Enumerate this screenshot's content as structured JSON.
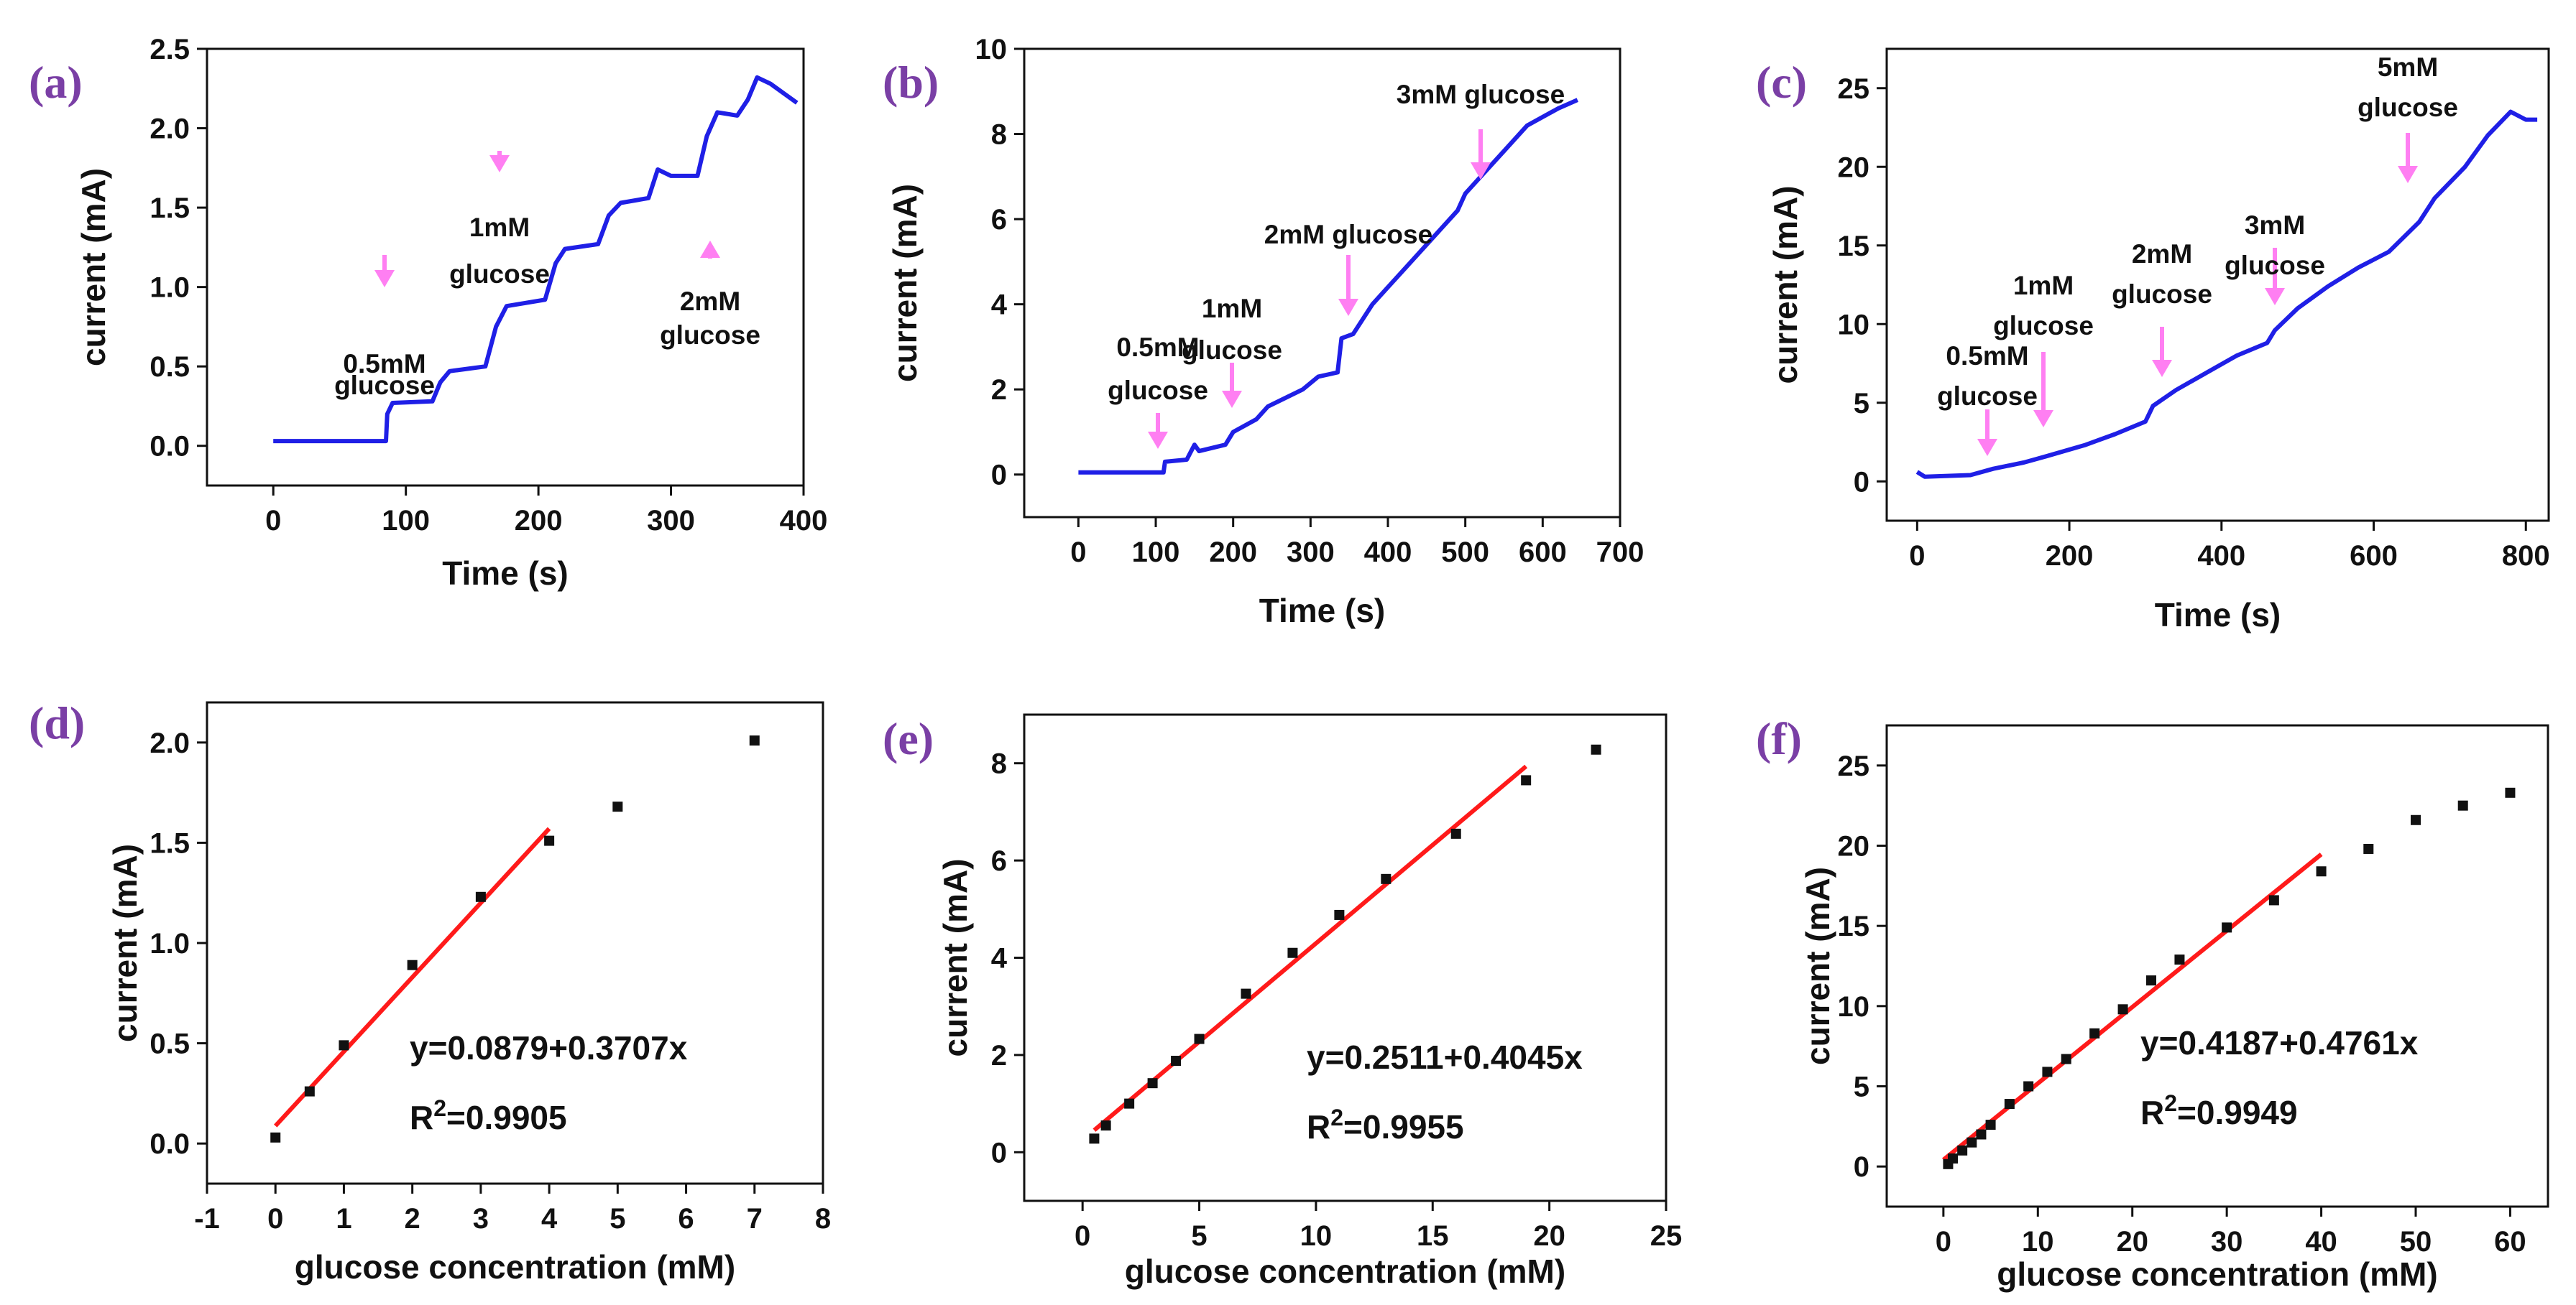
{
  "chart_data": [
    {
      "id": "a",
      "type": "line",
      "panel_label": "(a)",
      "xlabel": "Time (s)",
      "ylabel": "current (mA)",
      "xlim": [
        -50,
        400
      ],
      "ylim": [
        -0.25,
        2.5
      ],
      "xticks": [
        0,
        100,
        200,
        300,
        400
      ],
      "yticks": [
        0.0,
        0.5,
        1.0,
        1.5,
        2.0,
        2.5
      ],
      "ytick_labels": [
        "0.0",
        "0.5",
        "1.0",
        "1.5",
        "2.0",
        "2.5"
      ],
      "xtick_labels": [
        "0",
        "100",
        "200",
        "300",
        "400"
      ],
      "series": [
        {
          "name": "current",
          "color": "#1f1fe6",
          "x": [
            0,
            85,
            86,
            90,
            120,
            126,
            133,
            160,
            168,
            176,
            205,
            213,
            220,
            245,
            253,
            262,
            283,
            290,
            300,
            320,
            327,
            335,
            350,
            358,
            365,
            375,
            395
          ],
          "y": [
            0.03,
            0.03,
            0.2,
            0.27,
            0.28,
            0.4,
            0.47,
            0.5,
            0.75,
            0.88,
            0.92,
            1.15,
            1.24,
            1.27,
            1.45,
            1.53,
            1.56,
            1.74,
            1.7,
            1.7,
            1.95,
            2.1,
            2.08,
            2.18,
            2.32,
            2.28,
            2.16
          ]
        }
      ],
      "annotations": [
        {
          "lines": [
            "0.5mM",
            "glucose"
          ],
          "arrow_x": 85,
          "direction": "down"
        },
        {
          "lines": [
            "1mM",
            "glucose"
          ],
          "arrow_x": 168,
          "direction": "down"
        },
        {
          "lines": [
            "2mM",
            "glucose"
          ],
          "arrow_x": 327,
          "direction": "up"
        }
      ]
    },
    {
      "id": "b",
      "type": "line",
      "panel_label": "(b)",
      "xlabel": "Time (s)",
      "ylabel": "current (mA)",
      "xlim": [
        -70,
        700
      ],
      "ylim": [
        -1,
        10
      ],
      "xticks": [
        0,
        100,
        200,
        300,
        400,
        500,
        600,
        700
      ],
      "yticks": [
        0,
        2,
        4,
        6,
        8,
        10
      ],
      "ytick_labels": [
        "0",
        "2",
        "4",
        "6",
        "8",
        "10"
      ],
      "xtick_labels": [
        "0",
        "100",
        "200",
        "300",
        "400",
        "500",
        "600",
        "700"
      ],
      "series": [
        {
          "name": "current",
          "color": "#1f1fe6",
          "x": [
            0,
            110,
            112,
            140,
            150,
            156,
            190,
            200,
            230,
            245,
            290,
            310,
            335,
            340,
            355,
            380,
            400,
            430,
            450,
            470,
            490,
            500,
            520,
            550,
            580,
            620,
            645
          ],
          "y": [
            0.05,
            0.05,
            0.3,
            0.35,
            0.7,
            0.55,
            0.7,
            1.0,
            1.3,
            1.6,
            2.0,
            2.3,
            2.4,
            3.2,
            3.3,
            4.0,
            4.4,
            5.0,
            5.4,
            5.8,
            6.2,
            6.6,
            7.0,
            7.6,
            8.2,
            8.6,
            8.8
          ]
        }
      ],
      "annotations": [
        {
          "lines": [
            "0.5mM",
            "glucose"
          ],
          "arrow_x": 110,
          "direction": "down"
        },
        {
          "lines": [
            "1mM",
            "glucose"
          ],
          "arrow_x": 195,
          "direction": "down"
        },
        {
          "lines": [
            "2mM glucose"
          ],
          "arrow_x": 335,
          "direction": "down"
        },
        {
          "lines": [
            "3mM glucose"
          ],
          "arrow_x": 490,
          "direction": "down"
        }
      ]
    },
    {
      "id": "c",
      "type": "line",
      "panel_label": "(c)",
      "xlabel": "Time (s)",
      "ylabel": "current (mA)",
      "xlim": [
        -40,
        830
      ],
      "ylim": [
        -2.5,
        27.5
      ],
      "xticks": [
        0,
        200,
        400,
        600,
        800
      ],
      "yticks": [
        0,
        5,
        10,
        15,
        20,
        25
      ],
      "ytick_labels": [
        "0",
        "5",
        "10",
        "15",
        "20",
        "25"
      ],
      "xtick_labels": [
        "0",
        "200",
        "400",
        "600",
        "800"
      ],
      "series": [
        {
          "name": "current",
          "color": "#1f1fe6",
          "x": [
            0,
            10,
            70,
            100,
            140,
            170,
            220,
            260,
            300,
            310,
            340,
            380,
            420,
            460,
            470,
            500,
            540,
            580,
            620,
            660,
            680,
            720,
            750,
            780,
            800,
            815
          ],
          "y": [
            0.6,
            0.3,
            0.4,
            0.8,
            1.2,
            1.6,
            2.3,
            3.0,
            3.8,
            4.8,
            5.8,
            6.9,
            8.0,
            8.8,
            9.6,
            11.0,
            12.4,
            13.6,
            14.6,
            16.5,
            18.0,
            20.0,
            22.0,
            23.5,
            23.0,
            23.0
          ]
        }
      ],
      "annotations": [
        {
          "lines": [
            "0.5mM",
            "glucose"
          ],
          "arrow_x": 65,
          "direction": "down"
        },
        {
          "lines": [
            "1mM",
            "glucose"
          ],
          "arrow_x": 140,
          "direction": "down"
        },
        {
          "lines": [
            "2mM",
            "glucose"
          ],
          "arrow_x": 310,
          "direction": "down"
        },
        {
          "lines": [
            "3mM",
            "glucose"
          ],
          "arrow_x": 465,
          "direction": "down"
        },
        {
          "lines": [
            "5mM",
            "glucose"
          ],
          "arrow_x": 660,
          "direction": "down"
        }
      ]
    },
    {
      "id": "d",
      "type": "scatter",
      "panel_label": "(d)",
      "xlabel": "glucose concentration (mM)",
      "ylabel": "current (mA)",
      "xlim": [
        -1,
        8
      ],
      "ylim": [
        -0.2,
        2.2
      ],
      "xticks": [
        -1,
        0,
        1,
        2,
        3,
        4,
        5,
        6,
        7,
        8
      ],
      "yticks": [
        0.0,
        0.5,
        1.0,
        1.5,
        2.0
      ],
      "ytick_labels": [
        "0.0",
        "0.5",
        "1.0",
        "1.5",
        "2.0"
      ],
      "xtick_labels": [
        "-1",
        "0",
        "1",
        "2",
        "3",
        "4",
        "5",
        "6",
        "7",
        "8"
      ],
      "points": {
        "x": [
          0,
          0.5,
          1,
          2,
          3,
          4,
          5,
          7
        ],
        "y": [
          0.03,
          0.26,
          0.49,
          0.89,
          1.23,
          1.51,
          1.68,
          2.01
        ]
      },
      "fit": {
        "x": [
          0,
          4
        ],
        "intercept": 0.0879,
        "slope": 0.3707,
        "color": "#ff1a1a"
      },
      "equation": "y=0.0879+0.3707x",
      "r2_prefix": "R",
      "r2_sup": "2",
      "r2_value": "=0.9905"
    },
    {
      "id": "e",
      "type": "scatter",
      "panel_label": "(e)",
      "xlabel": "glucose concentration (mM)",
      "ylabel": "current (mA)",
      "xlim": [
        -2.5,
        25
      ],
      "ylim": [
        -1,
        9
      ],
      "xticks": [
        0,
        5,
        10,
        15,
        20,
        25
      ],
      "yticks": [
        0,
        2,
        4,
        6,
        8
      ],
      "ytick_labels": [
        "0",
        "2",
        "4",
        "6",
        "8"
      ],
      "xtick_labels": [
        "0",
        "5",
        "10",
        "15",
        "20",
        "25"
      ],
      "points": {
        "x": [
          0.5,
          1,
          2,
          3,
          4,
          5,
          7,
          9,
          11,
          13,
          16,
          19,
          22
        ],
        "y": [
          0.28,
          0.55,
          1.0,
          1.42,
          1.88,
          2.33,
          3.26,
          4.1,
          4.88,
          5.62,
          6.55,
          7.65,
          8.28
        ]
      },
      "fit": {
        "x": [
          0.5,
          19
        ],
        "intercept": 0.2511,
        "slope": 0.4045,
        "color": "#ff1a1a"
      },
      "equation": "y=0.2511+0.4045x",
      "r2_prefix": "R",
      "r2_sup": "2",
      "r2_value": "=0.9955"
    },
    {
      "id": "f",
      "type": "scatter",
      "panel_label": "(f)",
      "xlabel": "glucose concentration (mM)",
      "ylabel": "current (mA)",
      "xlim": [
        -6,
        64
      ],
      "ylim": [
        -2.5,
        27.5
      ],
      "xticks": [
        0,
        10,
        20,
        30,
        40,
        50,
        60
      ],
      "yticks": [
        0,
        5,
        10,
        15,
        20,
        25
      ],
      "ytick_labels": [
        "0",
        "5",
        "10",
        "15",
        "20",
        "25"
      ],
      "xtick_labels": [
        "0",
        "10",
        "20",
        "30",
        "40",
        "50",
        "60"
      ],
      "points": {
        "x": [
          0.5,
          1,
          2,
          3,
          4,
          5,
          7,
          9,
          11,
          13,
          16,
          19,
          22,
          25,
          30,
          35,
          40,
          45,
          50,
          55,
          60
        ],
        "y": [
          0.15,
          0.5,
          1.0,
          1.5,
          2.0,
          2.6,
          3.9,
          5.0,
          5.9,
          6.7,
          8.3,
          9.8,
          11.6,
          12.9,
          14.9,
          16.6,
          18.4,
          19.8,
          21.6,
          22.5,
          23.3
        ]
      },
      "fit": {
        "x": [
          0,
          40
        ],
        "intercept": 0.4187,
        "slope": 0.4761,
        "color": "#ff1a1a"
      },
      "equation": "y=0.4187+0.4761x",
      "r2_prefix": "R",
      "r2_sup": "2",
      "r2_value": "=0.9949"
    }
  ],
  "colors": {
    "panel_label": "#7a3fa5",
    "arrow": "#ff7ff2",
    "trace": "#1f1fe6",
    "fit": "#ff1a1a",
    "point": "#111111"
  }
}
